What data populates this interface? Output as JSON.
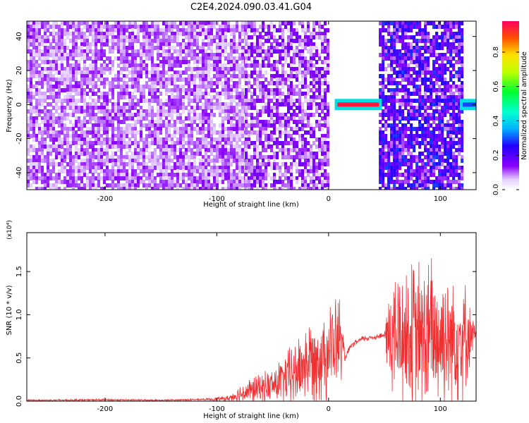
{
  "title": "C2E4.2024.090.03.41.G04",
  "chart_data": [
    {
      "type": "heatmap",
      "xlabel": "Height of straight line (km)",
      "ylabel": "Frequency (Hz)",
      "xlim": [
        -270,
        132
      ],
      "ylim": [
        -50,
        49
      ],
      "xticks": [
        -200,
        -100,
        0,
        100
      ],
      "yticks": [
        -40,
        -20,
        0,
        20,
        40
      ],
      "grid": false,
      "regions": [
        {
          "x_from": -270,
          "x_to": -75,
          "density": 0.8,
          "level": [
            0.05,
            0.14
          ]
        },
        {
          "x_from": -75,
          "x_to": 0,
          "density": 0.7,
          "level": [
            0.05,
            0.18
          ]
        },
        {
          "x_from": 0,
          "x_to": 45,
          "density": 0.0,
          "level": [
            0,
            0
          ]
        },
        {
          "x_from": 45,
          "x_to": 120,
          "density": 0.8,
          "level": [
            0.08,
            0.3
          ]
        },
        {
          "x_from": 120,
          "x_to": 132,
          "density": 0.0,
          "level": [
            0,
            0
          ]
        }
      ],
      "features": [
        {
          "name": "strong line",
          "x_from": 8,
          "x_to": 45,
          "frequency": 0,
          "level": 0.97
        },
        {
          "name": "edge",
          "x_from": 120,
          "x_to": 132,
          "frequency": 0,
          "level": 0.3
        }
      ],
      "colorbar": {
        "label": "Normalized spectral amplitude",
        "range": [
          0.0,
          0.98
        ],
        "ticks": [
          0.0,
          0.2,
          0.4,
          0.6,
          0.8
        ],
        "tick_labels": [
          "0.0",
          "0.2",
          "0.4",
          "0.6",
          "0.8"
        ]
      }
    },
    {
      "type": "line",
      "xlabel": "Height of straight line (km)",
      "ylabel": "SNR (10 * v/v)",
      "y_multiplier": "(x10⁴)",
      "xlim": [
        -270,
        132
      ],
      "ylim": [
        0,
        1.95
      ],
      "xticks": [
        -200,
        -100,
        0,
        100
      ],
      "yticks": [
        0.0,
        0.5,
        1.0,
        1.5
      ],
      "ytick_labels": [
        "0.0",
        "0.5",
        "1.0",
        "1.5"
      ],
      "grid": false,
      "series": [
        {
          "color": "#f03030",
          "x": [
            -270,
            -200,
            -150,
            -110,
            -90,
            -80,
            -70,
            -60,
            -50,
            -40,
            -30,
            -20,
            -10,
            0,
            10,
            15,
            20,
            30,
            40,
            50,
            55,
            70,
            85,
            100,
            110,
            120,
            132
          ],
          "y": [
            0.01,
            0.015,
            0.01,
            0.02,
            0.03,
            0.08,
            0.12,
            0.15,
            0.18,
            0.25,
            0.32,
            0.45,
            0.5,
            0.6,
            0.7,
            0.5,
            0.64,
            0.72,
            0.74,
            0.76,
            0.75,
            0.75,
            0.74,
            0.75,
            0.74,
            0.75,
            0.77
          ],
          "spread": [
            0.01,
            0.015,
            0.01,
            0.015,
            0.04,
            0.12,
            0.18,
            0.2,
            0.25,
            0.35,
            0.45,
            0.55,
            0.6,
            0.65,
            0.65,
            0.05,
            0.04,
            0.04,
            0.04,
            0.04,
            0.9,
            1.0,
            1.1,
            1.1,
            1.0,
            0.9,
            0.03
          ]
        }
      ]
    }
  ]
}
